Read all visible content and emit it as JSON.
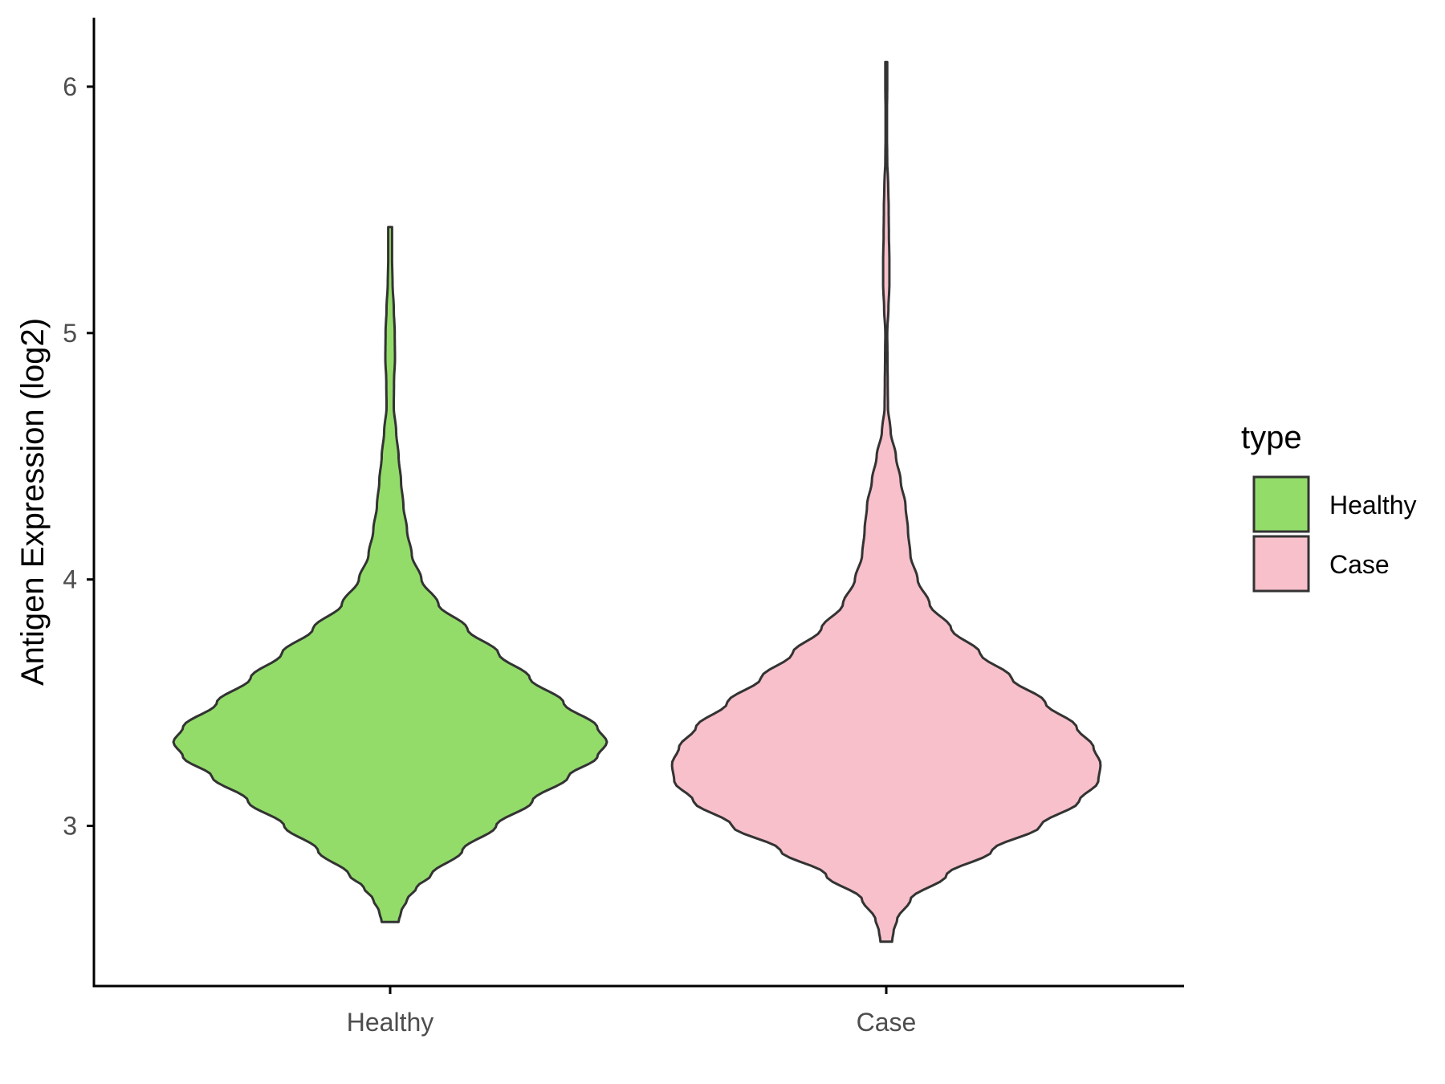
{
  "chart_data": {
    "type": "violin",
    "xlabel": "",
    "ylabel": "Antigen Expression (log2)",
    "categories": [
      "Healthy",
      "Case"
    ],
    "ylim": [
      2.35,
      6.28
    ],
    "yticks": [
      3,
      4,
      5,
      6
    ],
    "grid": false,
    "legend": {
      "title": "type",
      "placement": "right",
      "entries": [
        {
          "label": "Healthy",
          "color": "#93DC6A"
        },
        {
          "label": "Case",
          "color": "#F7C0CB"
        }
      ]
    },
    "outline_color": "#333333",
    "series": [
      {
        "name": "Healthy",
        "color": "#93DC6A",
        "range": [
          2.61,
          5.43
        ],
        "density_profile": [
          [
            2.61,
            0.035
          ],
          [
            2.65,
            0.045
          ],
          [
            2.7,
            0.07
          ],
          [
            2.75,
            0.11
          ],
          [
            2.8,
            0.17
          ],
          [
            2.9,
            0.3
          ],
          [
            3.0,
            0.44
          ],
          [
            3.1,
            0.59
          ],
          [
            3.2,
            0.74
          ],
          [
            3.28,
            0.86
          ],
          [
            3.34,
            0.9
          ],
          [
            3.4,
            0.86
          ],
          [
            3.5,
            0.72
          ],
          [
            3.6,
            0.58
          ],
          [
            3.7,
            0.45
          ],
          [
            3.8,
            0.32
          ],
          [
            3.9,
            0.2
          ],
          [
            4.0,
            0.13
          ],
          [
            4.1,
            0.09
          ],
          [
            4.2,
            0.07
          ],
          [
            4.3,
            0.055
          ],
          [
            4.4,
            0.045
          ],
          [
            4.5,
            0.035
          ],
          [
            4.6,
            0.025
          ],
          [
            4.7,
            0.015
          ],
          [
            4.8,
            0.016
          ],
          [
            4.9,
            0.02
          ],
          [
            5.0,
            0.019
          ],
          [
            5.1,
            0.015
          ],
          [
            5.2,
            0.01
          ],
          [
            5.3,
            0.008
          ],
          [
            5.43,
            0.008
          ]
        ]
      },
      {
        "name": "Case",
        "color": "#F7C0CB",
        "range": [
          2.53,
          6.1
        ],
        "density_profile": [
          [
            2.53,
            0.024
          ],
          [
            2.57,
            0.03
          ],
          [
            2.62,
            0.045
          ],
          [
            2.7,
            0.1
          ],
          [
            2.8,
            0.25
          ],
          [
            2.9,
            0.44
          ],
          [
            3.0,
            0.64
          ],
          [
            3.1,
            0.8
          ],
          [
            3.18,
            0.88
          ],
          [
            3.25,
            0.89
          ],
          [
            3.32,
            0.86
          ],
          [
            3.4,
            0.79
          ],
          [
            3.5,
            0.66
          ],
          [
            3.6,
            0.52
          ],
          [
            3.7,
            0.39
          ],
          [
            3.8,
            0.27
          ],
          [
            3.9,
            0.18
          ],
          [
            4.0,
            0.13
          ],
          [
            4.1,
            0.1
          ],
          [
            4.2,
            0.09
          ],
          [
            4.3,
            0.08
          ],
          [
            4.4,
            0.06
          ],
          [
            4.5,
            0.04
          ],
          [
            4.6,
            0.018
          ],
          [
            4.7,
            0.007
          ],
          [
            4.8,
            0.006
          ],
          [
            4.9,
            0.005
          ],
          [
            5.0,
            0.004
          ],
          [
            5.1,
            0.009
          ],
          [
            5.2,
            0.013
          ],
          [
            5.3,
            0.013
          ],
          [
            5.4,
            0.011
          ],
          [
            5.5,
            0.01
          ],
          [
            5.6,
            0.008
          ],
          [
            5.7,
            0.004
          ],
          [
            5.8,
            0.003
          ],
          [
            5.9,
            0.003
          ],
          [
            6.0,
            0.004
          ],
          [
            6.1,
            0.004
          ]
        ]
      }
    ]
  }
}
